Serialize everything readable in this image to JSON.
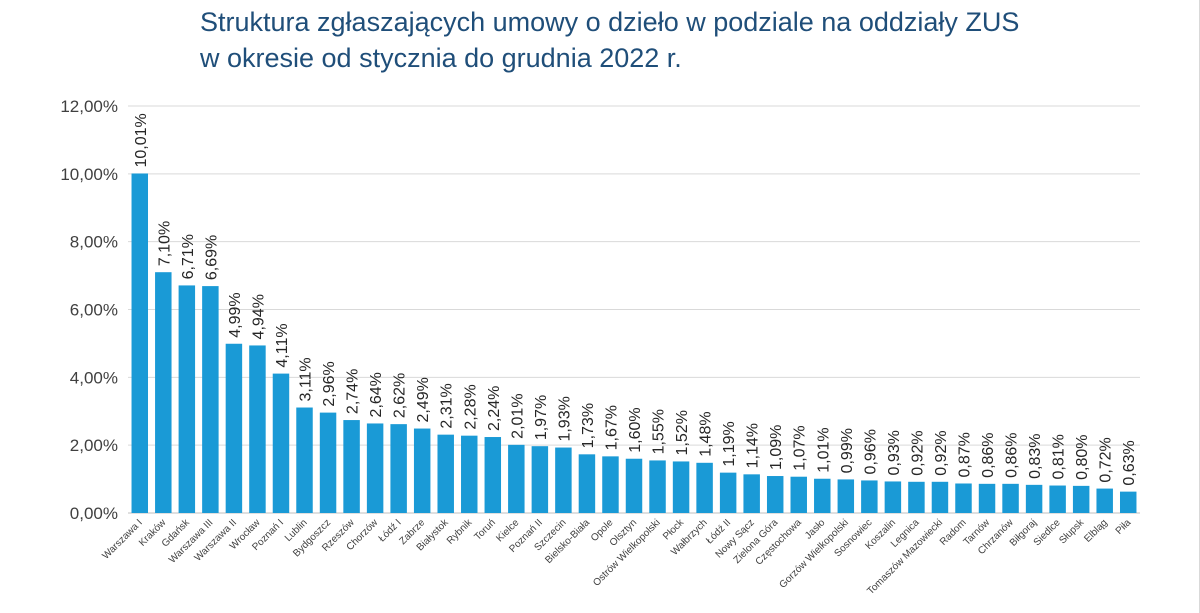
{
  "chart_data": {
    "type": "bar",
    "title_lines": [
      "Struktura zgłaszających umowy o dzieło w podziale na oddziały ZUS",
      "w okresie od stycznia do grudnia 2022 r."
    ],
    "xlabel": "",
    "ylabel": "",
    "ylim": [
      0,
      12
    ],
    "yticks": [
      "0,00%",
      "2,00%",
      "4,00%",
      "6,00%",
      "8,00%",
      "10,00%",
      "12,00%"
    ],
    "grid": true,
    "legend": "none",
    "bar_color": "#1a9ad6",
    "categories": [
      "Warszawa I",
      "Kraków",
      "Gdańsk",
      "Warszawa III",
      "Warszawa II",
      "Wrocław",
      "Poznań I",
      "Lublin",
      "Bydgoszcz",
      "Rzeszów",
      "Chorzów",
      "Łódź I",
      "Zabrze",
      "Białystok",
      "Rybnik",
      "Toruń",
      "Kielce",
      "Poznań II",
      "Szczecin",
      "Bielsko-Biała",
      "Opole",
      "Olsztyn",
      "Ostrów Wielkopolski",
      "Płock",
      "Wałbrzych",
      "Łódź II",
      "Nowy Sącz",
      "Zielona Góra",
      "Częstochowa",
      "Jasło",
      "Gorzów Wielkopolski",
      "Sosnowiec",
      "Koszalin",
      "Legnica",
      "Tomaszów Mazowiecki",
      "Radom",
      "Tarnów",
      "Chrzanów",
      "Biłgoraj",
      "Siedlce",
      "Słupsk",
      "Elbląg",
      "Piła"
    ],
    "values": [
      10.01,
      7.1,
      6.71,
      6.69,
      4.99,
      4.94,
      4.11,
      3.11,
      2.96,
      2.74,
      2.64,
      2.62,
      2.49,
      2.31,
      2.28,
      2.24,
      2.01,
      1.97,
      1.93,
      1.73,
      1.67,
      1.6,
      1.55,
      1.52,
      1.48,
      1.19,
      1.14,
      1.09,
      1.07,
      1.01,
      0.99,
      0.96,
      0.93,
      0.92,
      0.92,
      0.87,
      0.86,
      0.86,
      0.83,
      0.81,
      0.8,
      0.72,
      0.63
    ],
    "data_labels": [
      "10,01%",
      "7,10%",
      "6,71%",
      "6,69%",
      "4,99%",
      "4,94%",
      "4,11%",
      "3,11%",
      "2,96%",
      "2,74%",
      "2,64%",
      "2,62%",
      "2,49%",
      "2,31%",
      "2,28%",
      "2,24%",
      "2,01%",
      "1,97%",
      "1,93%",
      "1,73%",
      "1,67%",
      "1,60%",
      "1,55%",
      "1,52%",
      "1,48%",
      "1,19%",
      "1,14%",
      "1,09%",
      "1,07%",
      "1,01%",
      "0,99%",
      "0,96%",
      "0,93%",
      "0,92%",
      "0,92%",
      "0,87%",
      "0,86%",
      "0,86%",
      "0,83%",
      "0,81%",
      "0,80%",
      "0,72%",
      "0,63%"
    ]
  }
}
